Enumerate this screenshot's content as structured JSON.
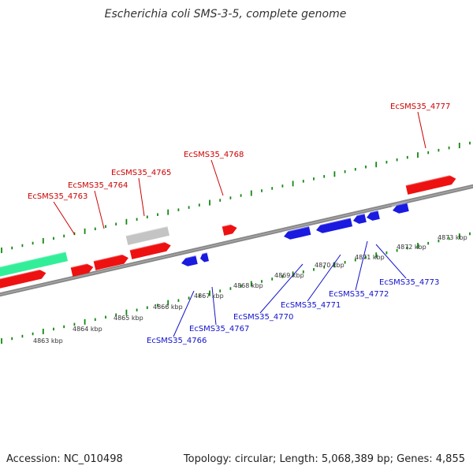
{
  "title": "Escherichia coli SMS-3-5, complete genome",
  "footer": {
    "accession": "Accession: NC_010498",
    "summary": "Topology: circular; Length: 5,068,389 bp; Genes: 4,855"
  },
  "colors": {
    "forward_gene": "#ee1111",
    "reverse_gene": "#1a1ae0",
    "pseudo_gene": "#c4c4c4",
    "rna_gene": "#33ee99",
    "tick": "#118811",
    "backbone": "#888888",
    "forward_label": "#cc0000",
    "reverse_label": "#1111cc"
  },
  "scale_labels": [
    "4863 kbp",
    "4864 kbp",
    "4865 kbp",
    "4866 kbp",
    "4867 kbp",
    "4868 kbp",
    "4869 kbp",
    "4870 kbp",
    "4871 kbp",
    "4872 kbp",
    "4873 kbp"
  ],
  "forward_gene_labels": [
    "EcSMS35_4763",
    "EcSMS35_4764",
    "EcSMS35_4765",
    "EcSMS35_4768",
    "EcSMS35_4777"
  ],
  "reverse_gene_labels": [
    "EcSMS35_4766",
    "EcSMS35_4767",
    "EcSMS35_4770",
    "EcSMS35_4771",
    "EcSMS35_4772",
    "EcSMS35_4773"
  ]
}
